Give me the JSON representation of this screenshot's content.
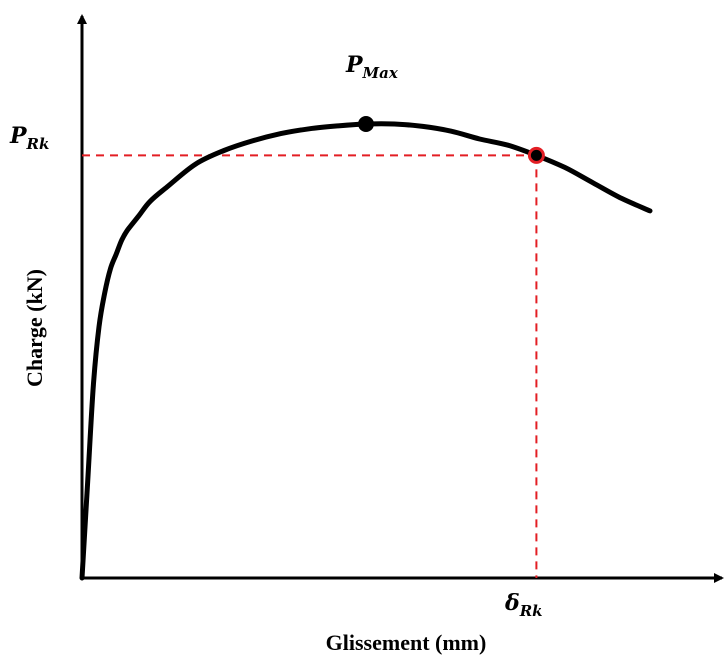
{
  "chart_data": {
    "type": "line",
    "title": "",
    "xlabel": "Glissement (mm)",
    "ylabel": "Charge (kN)",
    "xlim": [
      0,
      100
    ],
    "ylim": [
      0,
      100
    ],
    "ticks_shown": false,
    "grid": false,
    "series": [
      {
        "x": [
          0,
          1,
          2,
          3,
          4,
          5,
          6,
          7,
          8,
          10,
          12,
          15,
          20,
          25,
          30,
          35,
          40,
          45,
          50,
          55,
          60,
          65,
          70,
          75,
          80,
          85,
          90,
          95,
          100
        ],
        "y": [
          0,
          20,
          40,
          52,
          59,
          64,
          67,
          70,
          72,
          75,
          78,
          81,
          85.7,
          88.5,
          90.5,
          92,
          93,
          93.6,
          94,
          94,
          93.5,
          92.5,
          90.9,
          89.6,
          87.5,
          85,
          81.8,
          78.6,
          76
        ],
        "color": "#000000"
      }
    ],
    "reference_lines": {
      "color": "#e31e24",
      "style": "dashed",
      "horizontal_y": 87.5,
      "vertical_x": 80
    },
    "annotations": [
      {
        "id": "pmax",
        "main": "P",
        "sub": "Max",
        "point": {
          "x": 50,
          "y": 94
        },
        "marker_color": "#000000"
      },
      {
        "id": "prk",
        "main": "P",
        "sub": "Rk",
        "point": {
          "x": 0,
          "y": 87.5
        }
      },
      {
        "id": "drk",
        "main": "δ",
        "sub": "Rk",
        "point": {
          "x": 80,
          "y": 0
        }
      }
    ],
    "rk_marker": {
      "x": 80,
      "y": 87.5,
      "edge_color": "#e31e24",
      "fill_color": "#000000"
    }
  }
}
